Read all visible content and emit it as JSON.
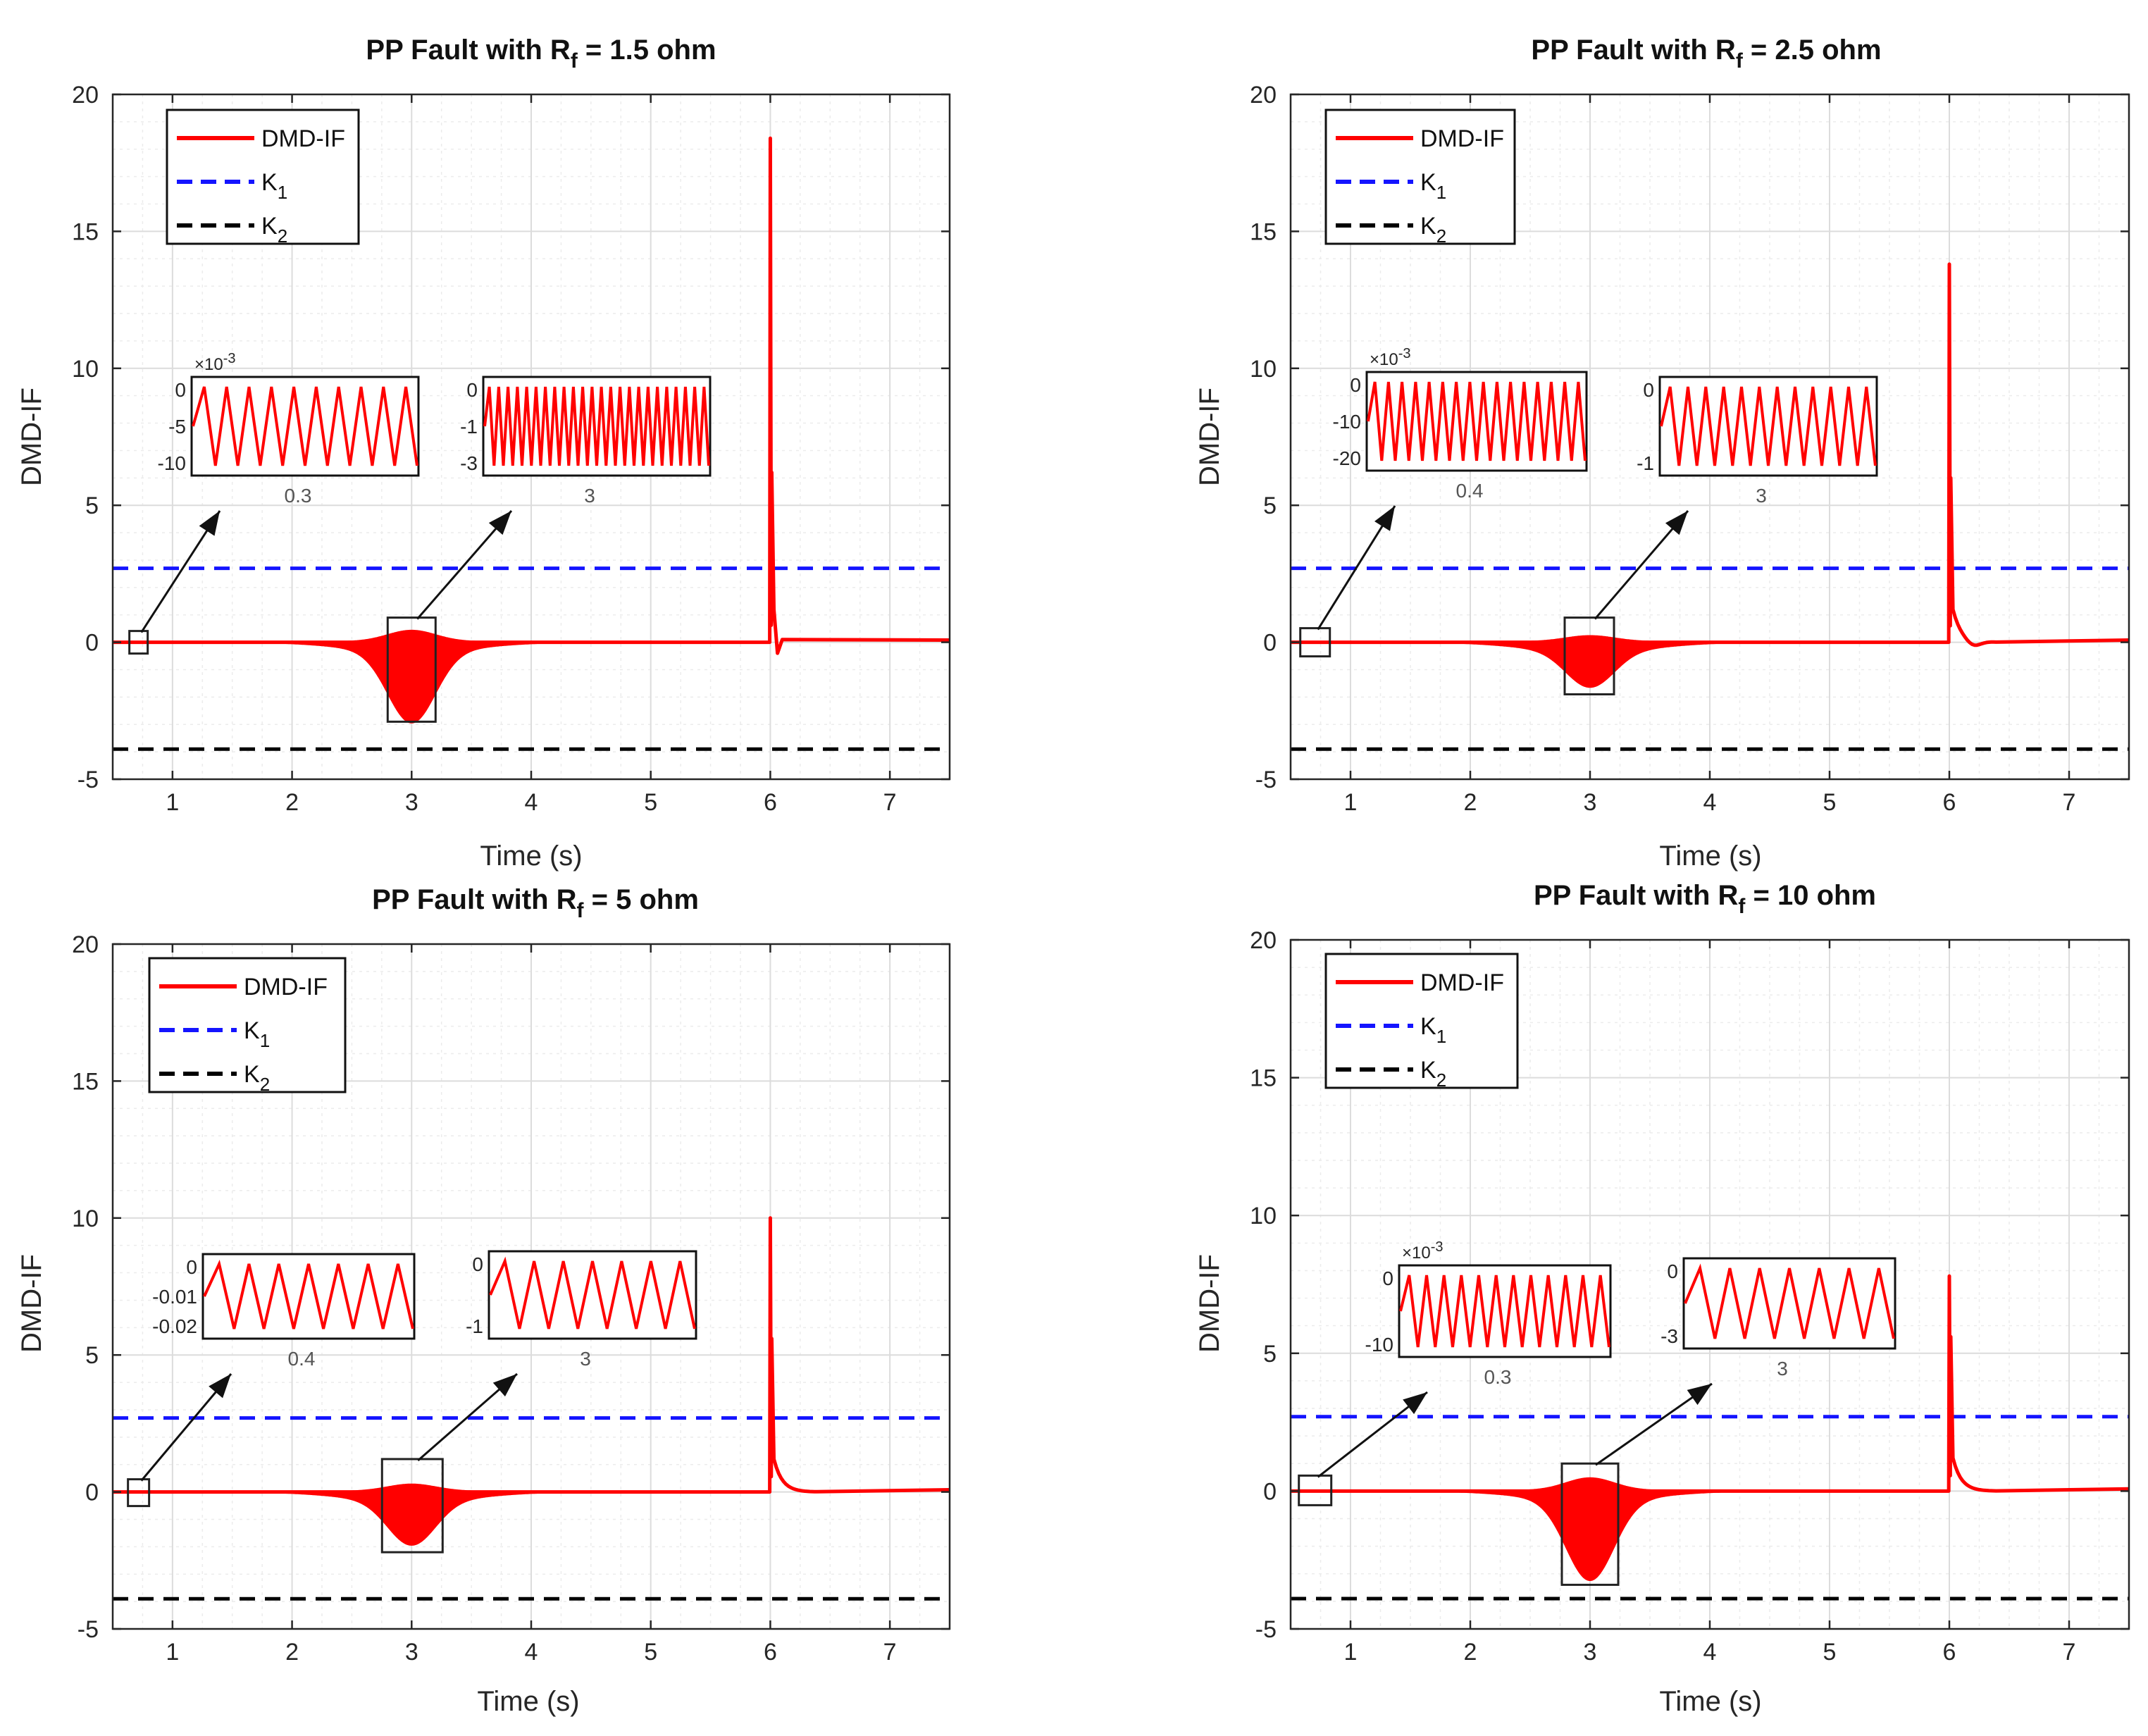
{
  "figure": {
    "description_free": true
  },
  "colors": {
    "signal": "#ff0000",
    "k1": "#1414ff",
    "k2": "#000000",
    "grid": "#dcdcdc",
    "axis": "#262626"
  },
  "chart_data": [
    {
      "type": "line",
      "title_main": "PP Fault with R",
      "title_sub": "f",
      "title_tail": " = 1.5 ohm",
      "xlabel": "Time (s)",
      "ylabel": "DMD-IF",
      "xlim": [
        0.5,
        7.5
      ],
      "ylim": [
        -5,
        20
      ],
      "xticks": [
        1,
        2,
        3,
        4,
        5,
        6,
        7
      ],
      "yticks": [
        -5,
        0,
        5,
        10,
        15,
        20
      ],
      "grid": true,
      "legend": {
        "position": "top-left",
        "entries": [
          {
            "name": "DMD-IF",
            "sub": ""
          },
          {
            "name": "K",
            "sub": "1"
          },
          {
            "name": "K",
            "sub": "2"
          }
        ]
      },
      "series": [
        {
          "name": "DMD-IF",
          "type": "line",
          "baseline": 0,
          "dip_center": 3.0,
          "dip_min": -2.6,
          "spike_x": 6.0,
          "spike_peak": 18.4,
          "spike_secondary": 6.2,
          "undershoot": -0.4
        },
        {
          "name": "K1",
          "type": "hline",
          "y": 2.7
        },
        {
          "name": "K2",
          "type": "hline",
          "y": -3.9
        }
      ],
      "insets": [
        {
          "exponent": "×10",
          "exponent_power": "-3",
          "yticks": [
            "0",
            "-5",
            "-10"
          ],
          "xtick": "0.3",
          "cycles": 10,
          "lo": -10,
          "hi": 0,
          "source_x": 0.7
        },
        {
          "exponent": "",
          "exponent_power": "",
          "yticks": [
            "0",
            "-1",
            "-3"
          ],
          "xtick": "3",
          "cycles": 24,
          "lo": -3,
          "hi": 0,
          "source_x": 3.0
        }
      ]
    },
    {
      "type": "line",
      "title_main": "PP Fault with R",
      "title_sub": "f",
      "title_tail": " = 2.5 ohm",
      "xlabel": "Time (s)",
      "ylabel": "DMD-IF",
      "xlim": [
        0.5,
        7.5
      ],
      "ylim": [
        -5,
        20
      ],
      "xticks": [
        1,
        2,
        3,
        4,
        5,
        6,
        7
      ],
      "yticks": [
        -5,
        0,
        5,
        10,
        15,
        20
      ],
      "grid": true,
      "legend": {
        "position": "top-left",
        "entries": [
          {
            "name": "DMD-IF",
            "sub": ""
          },
          {
            "name": "K",
            "sub": "1"
          },
          {
            "name": "K",
            "sub": "2"
          }
        ]
      },
      "series": [
        {
          "name": "DMD-IF",
          "type": "line",
          "baseline": 0,
          "dip_center": 3.0,
          "dip_min": -1.3,
          "spike_x": 6.0,
          "spike_peak": 13.8,
          "spike_secondary": 6.0,
          "undershoot": -0.1
        },
        {
          "name": "K1",
          "type": "hline",
          "y": 2.7
        },
        {
          "name": "K2",
          "type": "hline",
          "y": -3.9
        }
      ],
      "insets": [
        {
          "exponent": "×10",
          "exponent_power": "-3",
          "yticks": [
            "0",
            "-10",
            "-20"
          ],
          "xtick": "0.4",
          "cycles": 16,
          "lo": -20,
          "hi": 0,
          "source_x": 0.7
        },
        {
          "exponent": "",
          "exponent_power": "",
          "yticks": [
            "0",
            "-1"
          ],
          "xtick": "3",
          "cycles": 12,
          "lo": -1.5,
          "hi": 0,
          "source_x": 3.0
        }
      ]
    },
    {
      "type": "line",
      "title_main": "PP Fault with R",
      "title_sub": "f",
      "title_tail": " = 5 ohm",
      "xlabel": "Time (s)",
      "ylabel": "DMD-IF",
      "xlim": [
        0.5,
        7.5
      ],
      "ylim": [
        -5,
        20
      ],
      "xticks": [
        1,
        2,
        3,
        4,
        5,
        6,
        7
      ],
      "yticks": [
        -5,
        0,
        5,
        10,
        15,
        20
      ],
      "grid": true,
      "legend": {
        "position": "top-left",
        "entries": [
          {
            "name": "DMD-IF",
            "sub": ""
          },
          {
            "name": "K",
            "sub": "1"
          },
          {
            "name": "K",
            "sub": "2"
          }
        ]
      },
      "series": [
        {
          "name": "DMD-IF",
          "type": "line",
          "baseline": 0,
          "dip_center": 3.0,
          "dip_min": -1.6,
          "spike_x": 6.0,
          "spike_peak": 10.0,
          "spike_secondary": 5.6,
          "undershoot": 0.0
        },
        {
          "name": "K1",
          "type": "hline",
          "y": 2.7
        },
        {
          "name": "K2",
          "type": "hline",
          "y": -3.9
        }
      ],
      "insets": [
        {
          "exponent": "",
          "exponent_power": "",
          "yticks": [
            "0",
            "-0.01",
            "-0.02"
          ],
          "xtick": "0.4",
          "cycles": 7,
          "lo": -0.02,
          "hi": 0,
          "source_x": 0.7
        },
        {
          "exponent": "",
          "exponent_power": "",
          "yticks": [
            "0",
            "-1"
          ],
          "xtick": "3",
          "cycles": 7,
          "lo": -1.5,
          "hi": 0,
          "source_x": 3.0
        }
      ]
    },
    {
      "type": "line",
      "title_main": "PP Fault with R",
      "title_sub": "f",
      "title_tail": " = 10 ohm",
      "xlabel": "Time (s)",
      "ylabel": "DMD-IF",
      "xlim": [
        0.5,
        7.5
      ],
      "ylim": [
        -5,
        20
      ],
      "xticks": [
        1,
        2,
        3,
        4,
        5,
        6,
        7
      ],
      "yticks": [
        -5,
        0,
        5,
        10,
        15,
        20
      ],
      "grid": true,
      "legend": {
        "position": "top-left",
        "entries": [
          {
            "name": "DMD-IF",
            "sub": ""
          },
          {
            "name": "K",
            "sub": "1"
          },
          {
            "name": "K",
            "sub": "2"
          }
        ]
      },
      "series": [
        {
          "name": "DMD-IF",
          "type": "line",
          "baseline": 0,
          "dip_center": 3.0,
          "dip_min": -2.9,
          "spike_x": 6.0,
          "spike_peak": 7.8,
          "spike_secondary": 5.6,
          "undershoot": 0.0
        },
        {
          "name": "K1",
          "type": "hline",
          "y": 2.7
        },
        {
          "name": "K2",
          "type": "hline",
          "y": -3.9
        }
      ],
      "insets": [
        {
          "exponent": "×10",
          "exponent_power": "-3",
          "yticks": [
            "0",
            "-10"
          ],
          "xtick": "0.3",
          "cycles": 12,
          "lo": -12,
          "hi": 0,
          "source_x": 0.7
        },
        {
          "exponent": "",
          "exponent_power": "",
          "yticks": [
            "0",
            "-3"
          ],
          "xtick": "3",
          "cycles": 7,
          "lo": -3,
          "hi": 0,
          "source_x": 3.0
        }
      ]
    }
  ]
}
